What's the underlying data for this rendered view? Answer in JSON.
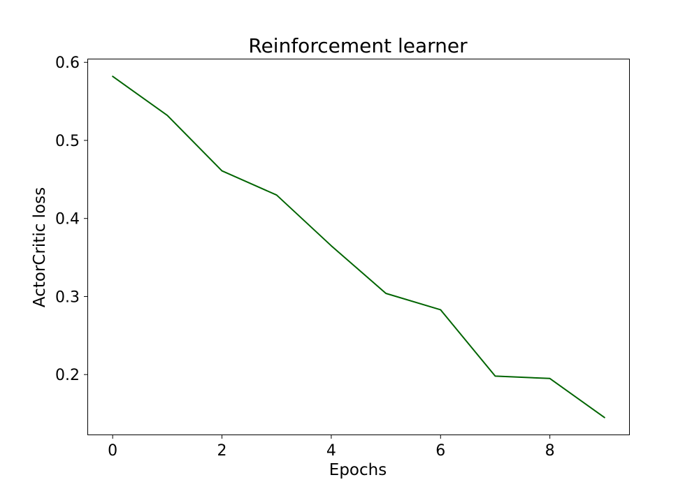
{
  "chart_data": {
    "type": "line",
    "title": "Reinforcement learner",
    "xlabel": "Epochs",
    "ylabel": "ActorCritic loss",
    "x": [
      0,
      1,
      2,
      3,
      4,
      5,
      6,
      7,
      8,
      9
    ],
    "series": [
      {
        "values": [
          0.582,
          0.532,
          0.461,
          0.43,
          0.365,
          0.304,
          0.283,
          0.198,
          0.195,
          0.145
        ],
        "color": "#006400"
      }
    ],
    "xlim": [
      -0.45,
      9.45
    ],
    "ylim": [
      0.1232,
      0.6038
    ],
    "xticks": [
      0,
      2,
      4,
      6,
      8
    ],
    "xtick_labels": [
      "0",
      "2",
      "4",
      "6",
      "8"
    ],
    "yticks": [
      0.2,
      0.3,
      0.4,
      0.5,
      0.6
    ],
    "ytick_labels": [
      "0.2",
      "0.3",
      "0.4",
      "0.5",
      "0.6"
    ],
    "grid": false,
    "legend": "none"
  }
}
